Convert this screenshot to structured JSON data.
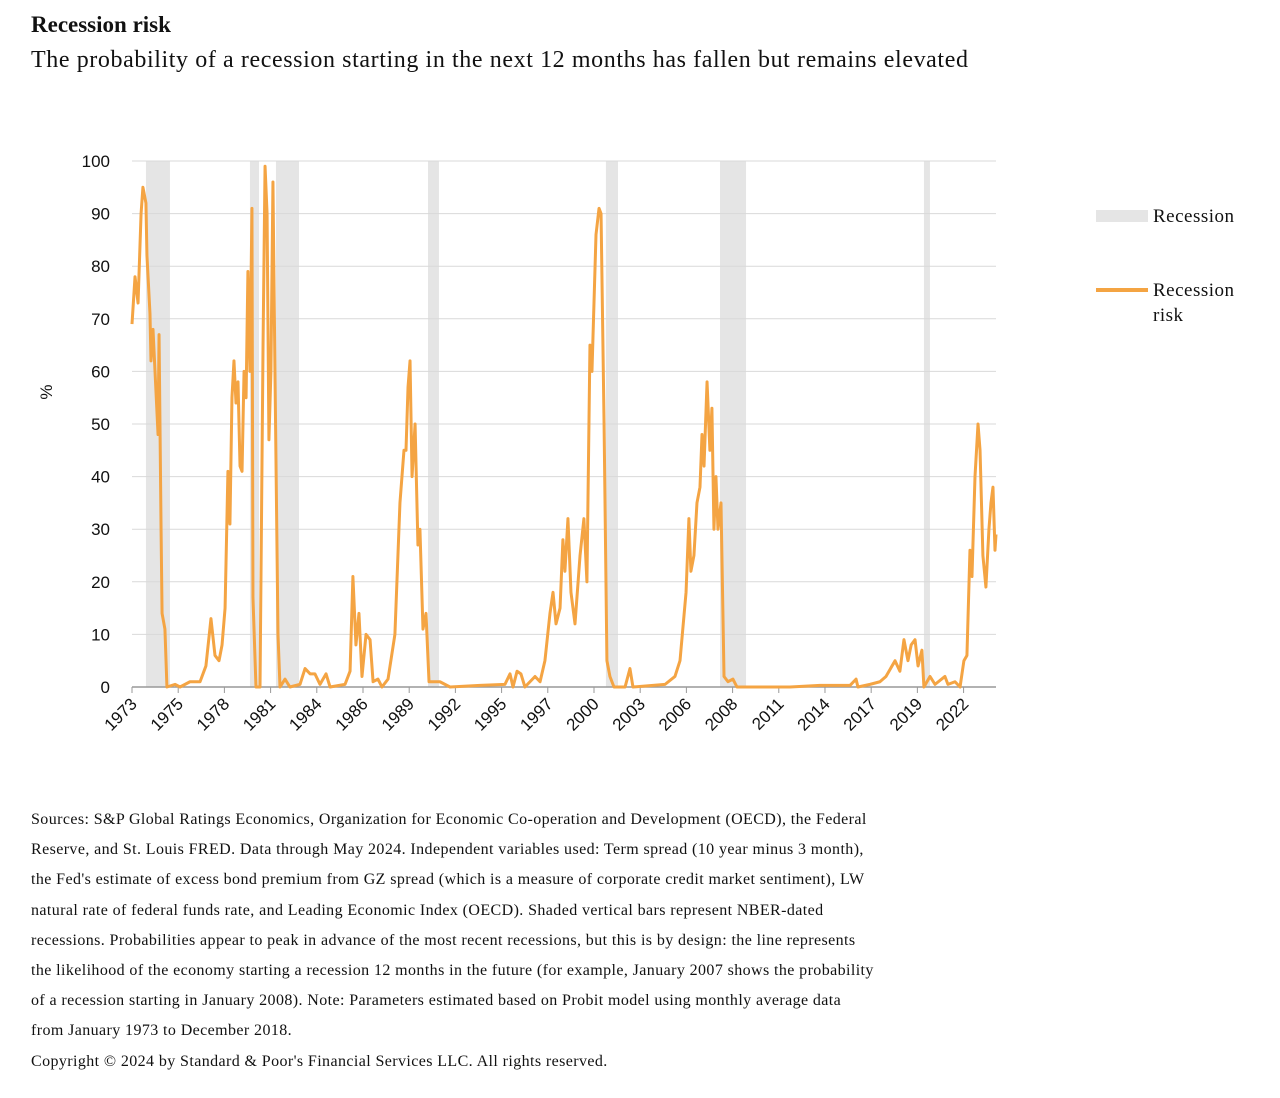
{
  "chart_data": {
    "type": "line",
    "title": "Recession risk",
    "subtitle": "The probability of a recession starting in the next 12 months has fallen but remains elevated",
    "ylabel": "%",
    "xlim": [
      1973,
      2024.43
    ],
    "ylim": [
      0,
      100
    ],
    "yticks": [
      0,
      10,
      20,
      30,
      40,
      50,
      60,
      70,
      80,
      90,
      100
    ],
    "xticks": [
      1973,
      {
        "value": 1975.75,
        "label": "1975"
      },
      {
        "value": 1978.5,
        "label": "1978"
      },
      {
        "value": 1981.25,
        "label": "1981"
      },
      1984,
      {
        "value": 1986.75,
        "label": "1986"
      },
      {
        "value": 1989.5,
        "label": "1989"
      },
      {
        "value": 1992.25,
        "label": "1992"
      },
      1995,
      {
        "value": 1997.75,
        "label": "1997"
      },
      {
        "value": 2000.5,
        "label": "2000"
      },
      {
        "value": 2003.25,
        "label": "2003"
      },
      2006,
      {
        "value": 2008.75,
        "label": "2008"
      },
      {
        "value": 2011.5,
        "label": "2011"
      },
      {
        "value": 2014.25,
        "label": "2014"
      },
      2017,
      {
        "value": 2019.75,
        "label": "2019"
      },
      {
        "value": 2022.5,
        "label": "2022"
      }
    ],
    "grid": true,
    "recession": {
      "name": "Recession",
      "color": "#e5e5e5",
      "ranges": [
        [
          1973.83,
          1975.26
        ],
        [
          1980.02,
          1980.56
        ],
        [
          1981.57,
          1982.94
        ],
        [
          1990.62,
          1991.27
        ],
        [
          2001.21,
          2001.93
        ],
        [
          2008.0,
          2009.55
        ],
        [
          2020.14,
          2020.5
        ]
      ]
    },
    "x": [
      1973.0,
      1973.18,
      1973.36,
      1973.54,
      1973.65,
      1973.83,
      1973.89,
      1974.07,
      1974.13,
      1974.25,
      1974.37,
      1974.55,
      1974.61,
      1974.73,
      1974.79,
      1974.96,
      1975.08,
      1975.56,
      1975.86,
      1976.45,
      1977.05,
      1977.4,
      1977.7,
      1977.94,
      1978.18,
      1978.36,
      1978.54,
      1978.71,
      1978.83,
      1978.95,
      1979.07,
      1979.19,
      1979.31,
      1979.43,
      1979.55,
      1979.67,
      1979.79,
      1979.9,
      1980.02,
      1980.14,
      1980.2,
      1980.38,
      1980.62,
      1980.8,
      1980.92,
      1981.04,
      1981.15,
      1981.27,
      1981.39,
      1981.51,
      1981.69,
      1981.81,
      1982.11,
      1982.4,
      1983.0,
      1983.3,
      1983.6,
      1983.89,
      1984.19,
      1984.55,
      1984.79,
      1985.68,
      1985.98,
      1986.15,
      1986.33,
      1986.51,
      1986.69,
      1986.93,
      1987.17,
      1987.35,
      1987.64,
      1987.88,
      1988.24,
      1988.65,
      1988.95,
      1989.19,
      1989.31,
      1989.43,
      1989.55,
      1989.67,
      1989.85,
      1990.02,
      1990.14,
      1990.32,
      1990.5,
      1990.68,
      1991.33,
      1991.93,
      1993.71,
      1995.2,
      1995.5,
      1995.68,
      1995.92,
      1996.15,
      1996.39,
      1996.99,
      1997.29,
      1997.58,
      1997.88,
      1998.06,
      1998.24,
      1998.48,
      1998.65,
      1998.77,
      1998.95,
      1999.13,
      1999.37,
      1999.67,
      1999.9,
      2000.08,
      2000.26,
      2000.38,
      2000.62,
      2000.8,
      2000.92,
      2001.1,
      2001.27,
      2001.45,
      2001.69,
      2002.35,
      2002.64,
      2002.82,
      2004.73,
      2005.32,
      2005.62,
      2005.98,
      2006.15,
      2006.27,
      2006.45,
      2006.63,
      2006.81,
      2006.93,
      2007.05,
      2007.23,
      2007.4,
      2007.52,
      2007.64,
      2007.76,
      2007.88,
      2008.06,
      2008.24,
      2008.48,
      2008.77,
      2009.01,
      2012.17,
      2013.95,
      2015.74,
      2016.1,
      2016.21,
      2016.93,
      2017.52,
      2017.88,
      2018.42,
      2018.71,
      2018.95,
      2019.19,
      2019.38,
      2019.61,
      2019.79,
      2020.02,
      2020.14,
      2020.5,
      2020.8,
      2021.39,
      2021.57,
      2021.99,
      2022.29,
      2022.52,
      2022.7,
      2022.88,
      2023.0,
      2023.18,
      2023.36,
      2023.48,
      2023.65,
      2023.83,
      2024.01,
      2024.13,
      2024.25,
      2024.37,
      2024.43
    ],
    "series": [
      {
        "name": "Recession risk",
        "color": "#f4a443",
        "values": [
          69,
          78,
          73,
          90,
          95,
          92,
          82,
          71,
          62,
          68,
          60,
          48,
          67,
          30,
          14,
          11,
          0,
          0.5,
          0,
          1,
          1,
          4,
          13,
          6,
          5,
          8,
          15,
          41,
          31,
          55,
          62,
          54,
          58,
          42,
          41,
          60,
          55,
          79,
          60,
          91,
          17,
          0,
          0,
          65,
          99,
          90,
          47,
          60,
          96,
          60,
          10,
          0,
          1.5,
          0,
          0.5,
          3.5,
          2.5,
          2.5,
          0.5,
          2.5,
          0,
          0.5,
          3,
          21,
          8,
          14,
          2,
          10,
          9,
          1,
          1.5,
          0,
          1.5,
          10,
          35,
          45,
          45,
          57,
          62,
          40,
          50,
          27,
          30,
          11,
          14,
          1,
          1,
          0,
          0.3,
          0.5,
          2.5,
          0,
          3,
          2.5,
          0,
          2,
          1,
          5,
          14,
          18,
          12,
          15,
          28,
          22,
          32,
          18,
          12,
          25,
          32,
          20,
          65,
          60,
          86,
          91,
          90,
          50,
          5,
          2,
          0,
          0,
          3.5,
          0,
          0.5,
          2,
          5,
          18,
          32,
          22,
          25,
          35,
          38,
          48,
          42,
          58,
          45,
          53,
          30,
          40,
          30,
          35,
          2,
          1,
          1.5,
          0,
          0,
          0.3,
          0.3,
          1.5,
          0,
          0.5,
          1,
          2,
          5,
          3,
          9,
          5,
          8,
          9,
          4,
          7,
          0,
          2,
          0.5,
          2,
          0.5,
          1,
          0,
          5,
          6,
          26,
          21,
          40,
          50,
          45,
          25,
          19,
          30,
          35,
          38,
          26,
          29
        ]
      }
    ],
    "notes": [
      "Sources: S&P Global Ratings Economics, Organization for Economic Co-operation and Development (OECD), the Federal",
      "Reserve, and St. Louis FRED. Data through May 2024. Independent variables used: Term spread (10 year minus 3 month),",
      "the Fed's estimate of excess bond premium from GZ spread (which is a measure of corporate credit market sentiment), LW",
      "natural rate of federal funds rate, and Leading Economic Index (OECD). Shaded vertical bars represent NBER-dated",
      "recessions. Probabilities appear to peak in advance of the most recent recessions, but this is by design: the line represents",
      "the likelihood of the economy starting a recession 12 months in the future (for example, January 2007 shows the probability",
      "of a recession starting in January 2008). Note: Parameters estimated based on Probit model using monthly average data",
      "from January 1973 to December 2018."
    ],
    "copyright": "Copyright © 2024 by Standard & Poor's Financial Services LLC. All rights reserved."
  }
}
